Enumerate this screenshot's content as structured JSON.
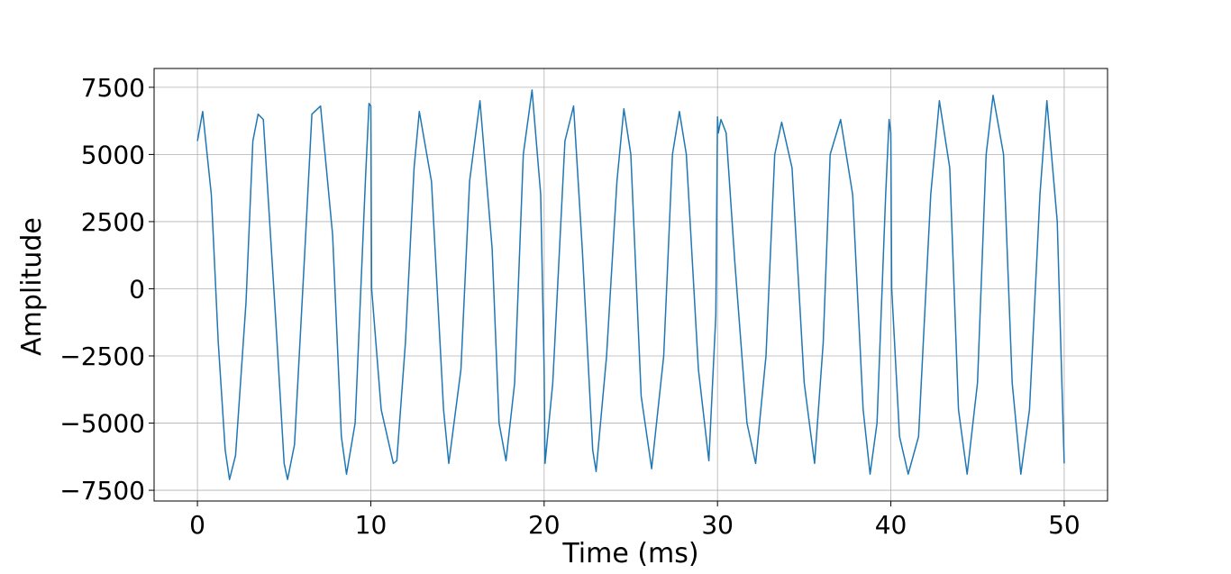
{
  "chart_data": {
    "type": "line",
    "title": "",
    "xlabel": "Time (ms)",
    "ylabel": "Amplitude",
    "xlim": [
      -2.5,
      52.5
    ],
    "ylim": [
      -7900,
      8200
    ],
    "x_ticks": [
      0,
      10,
      20,
      30,
      40,
      50
    ],
    "x_tick_labels": [
      "0",
      "10",
      "20",
      "30",
      "40",
      "50"
    ],
    "y_ticks": [
      -7500,
      -5000,
      -2500,
      0,
      2500,
      5000,
      7500
    ],
    "y_tick_labels": [
      "−7500",
      "−5000",
      "−2500",
      "0",
      "2500",
      "5000",
      "7500"
    ],
    "grid": true,
    "line_color": "#1f77b4",
    "series": [
      {
        "x": [
          0.0,
          0.3,
          0.8,
          1.2,
          1.6,
          1.85,
          2.2,
          2.8,
          3.2,
          3.5,
          3.8,
          4.5,
          5.0,
          5.2,
          5.6,
          6.2,
          6.6,
          7.1,
          7.8,
          8.3,
          8.6,
          9.1,
          9.7,
          9.9,
          10.0,
          10.05,
          10.6,
          11.3,
          11.5,
          12.0,
          12.5,
          12.8,
          13.5,
          14.2,
          14.5,
          15.2,
          15.7,
          16.3,
          17.0,
          17.4,
          17.8,
          18.3,
          18.8,
          19.3,
          19.8,
          20.0,
          20.05,
          20.5,
          21.2,
          21.7,
          22.2,
          22.8,
          23.0,
          23.6,
          24.2,
          24.6,
          25.0,
          25.6,
          26.2,
          26.9,
          27.4,
          27.8,
          28.2,
          28.9,
          29.5,
          29.9,
          30.0,
          30.05,
          30.2,
          30.5,
          31.0,
          31.7,
          32.2,
          32.8,
          33.3,
          33.7,
          34.3,
          35.0,
          35.6,
          36.1,
          36.5,
          37.1,
          37.8,
          38.4,
          38.8,
          39.2,
          39.7,
          39.9,
          40.0,
          40.05,
          40.5,
          41.0,
          41.6,
          42.3,
          42.8,
          43.4,
          43.9,
          44.4,
          45.0,
          45.5,
          45.9,
          46.5,
          47.0,
          47.5,
          48.0,
          48.6,
          49.0,
          49.6,
          50.0
        ],
        "y": [
          5500,
          6600,
          3500,
          -2000,
          -6000,
          -7100,
          -6200,
          -500,
          5500,
          6500,
          6300,
          -1000,
          -6500,
          -7100,
          -5800,
          1500,
          6500,
          6800,
          2000,
          -5500,
          -6900,
          -5000,
          4200,
          6900,
          6800,
          0,
          -4500,
          -6500,
          -6400,
          -2000,
          4500,
          6600,
          4000,
          -4500,
          -6500,
          -3000,
          4000,
          7000,
          1500,
          -5000,
          -6400,
          -3500,
          5000,
          7400,
          3500,
          -3000,
          -6500,
          -3500,
          5500,
          6800,
          1500,
          -6000,
          -6800,
          -2500,
          4000,
          6700,
          5000,
          -4000,
          -6700,
          -2500,
          5000,
          6600,
          5000,
          -3000,
          -6400,
          -1000,
          6400,
          5800,
          6300,
          5800,
          1000,
          -5000,
          -6500,
          -2500,
          5000,
          6200,
          4500,
          -3500,
          -6500,
          -2000,
          5000,
          6300,
          3500,
          -4500,
          -6900,
          -5000,
          3500,
          6300,
          5800,
          0,
          -5500,
          -6900,
          -5500,
          3500,
          7000,
          4500,
          -4500,
          -6900,
          -3500,
          5000,
          7200,
          5000,
          -3500,
          -6900,
          -4500,
          3500,
          7000,
          2500,
          -6500
        ]
      }
    ]
  }
}
